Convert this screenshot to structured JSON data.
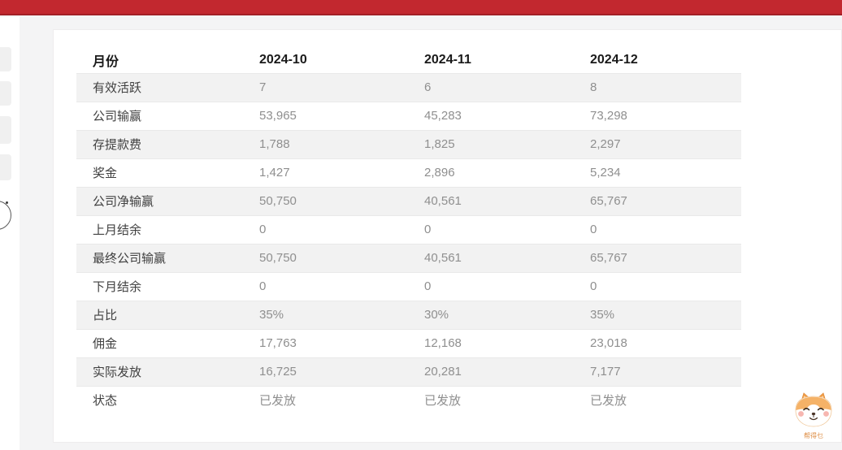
{
  "colors": {
    "topbar": "#c2282f",
    "topbar_edge": "#a21f26",
    "row_stripe": "#f2f2f2",
    "value_text": "#8f8f8f",
    "mascot_accent": "#f2a95c"
  },
  "table": {
    "header": {
      "label": "月份",
      "columns": [
        "2024-10",
        "2024-11",
        "2024-12"
      ]
    },
    "rows": [
      {
        "label": "有效活跃",
        "values": [
          "7",
          "6",
          "8"
        ]
      },
      {
        "label": "公司输赢",
        "values": [
          "53,965",
          "45,283",
          "73,298"
        ]
      },
      {
        "label": "存提款费",
        "values": [
          "1,788",
          "1,825",
          "2,297"
        ]
      },
      {
        "label": "奖金",
        "values": [
          "1,427",
          "2,896",
          "5,234"
        ]
      },
      {
        "label": "公司净输赢",
        "values": [
          "50,750",
          "40,561",
          "65,767"
        ]
      },
      {
        "label": "上月结余",
        "values": [
          "0",
          "0",
          "0"
        ]
      },
      {
        "label": "最终公司输赢",
        "values": [
          "50,750",
          "40,561",
          "65,767"
        ]
      },
      {
        "label": "下月结余",
        "values": [
          "0",
          "0",
          "0"
        ]
      },
      {
        "label": "占比",
        "values": [
          "35%",
          "30%",
          "35%"
        ]
      },
      {
        "label": "佣金",
        "values": [
          "17,763",
          "12,168",
          "23,018"
        ]
      },
      {
        "label": "实际发放",
        "values": [
          "16,725",
          "20,281",
          "7,177"
        ]
      },
      {
        "label": "状态",
        "values": [
          "已发放",
          "已发放",
          "已发放"
        ]
      }
    ]
  },
  "mascot": {
    "caption": "帮得乜"
  }
}
